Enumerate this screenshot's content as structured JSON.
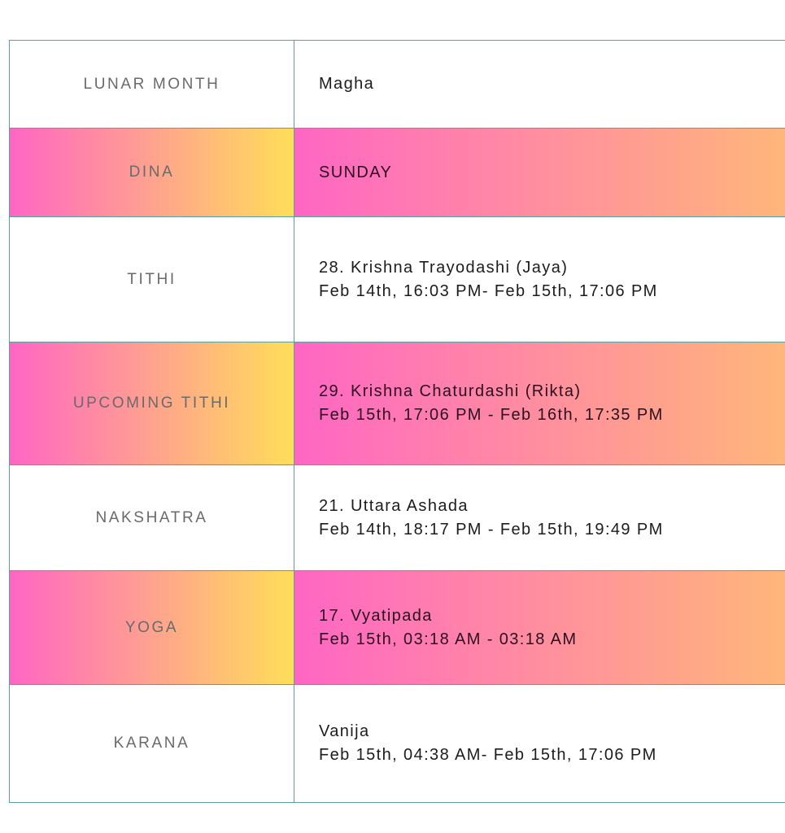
{
  "rows": [
    {
      "label": "LUNAR MONTH",
      "value": "Magha",
      "detail": ""
    },
    {
      "label": "DINA",
      "value": "SUNDAY",
      "detail": ""
    },
    {
      "label": "TITHI",
      "value": "28. Krishna Trayodashi (Jaya)",
      "detail": "Feb 14th, 16:03 PM- Feb 15th, 17:06 PM"
    },
    {
      "label": "UPCOMING TITHI",
      "value": "29. Krishna Chaturdashi (Rikta)",
      "detail": "Feb 15th, 17:06 PM - Feb 16th, 17:35 PM"
    },
    {
      "label": "NAKSHATRA",
      "value": "21. Uttara Ashada",
      "detail": "Feb 14th, 18:17 PM - Feb 15th, 19:49 PM"
    },
    {
      "label": "YOGA",
      "value": "17. Vyatipada",
      "detail": "Feb 15th, 03:18 AM - 03:18 AM"
    },
    {
      "label": "KARANA",
      "value": "Vanija",
      "detail": "Feb 15th, 04:38 AM- Feb 15th, 17:06 PM"
    }
  ],
  "colors": {
    "border": "#5f9ea0",
    "gradient_start": "#ff66c4",
    "gradient_end": "#ffde59"
  }
}
